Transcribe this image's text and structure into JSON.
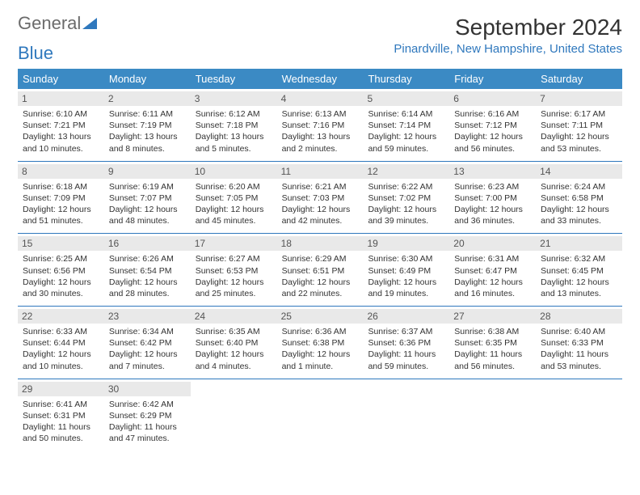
{
  "logo": {
    "text_gray": "General",
    "text_blue": "Blue"
  },
  "header": {
    "month_title": "September 2024",
    "location": "Pinardville, New Hampshire, United States"
  },
  "colors": {
    "header_bg": "#3b8ac4",
    "rule": "#2f78bd",
    "daynum_bg": "#e9e9e9",
    "text": "#333333"
  },
  "day_names": [
    "Sunday",
    "Monday",
    "Tuesday",
    "Wednesday",
    "Thursday",
    "Friday",
    "Saturday"
  ],
  "weeks": [
    [
      {
        "n": "1",
        "sunrise": "Sunrise: 6:10 AM",
        "sunset": "Sunset: 7:21 PM",
        "day1": "Daylight: 13 hours",
        "day2": "and 10 minutes."
      },
      {
        "n": "2",
        "sunrise": "Sunrise: 6:11 AM",
        "sunset": "Sunset: 7:19 PM",
        "day1": "Daylight: 13 hours",
        "day2": "and 8 minutes."
      },
      {
        "n": "3",
        "sunrise": "Sunrise: 6:12 AM",
        "sunset": "Sunset: 7:18 PM",
        "day1": "Daylight: 13 hours",
        "day2": "and 5 minutes."
      },
      {
        "n": "4",
        "sunrise": "Sunrise: 6:13 AM",
        "sunset": "Sunset: 7:16 PM",
        "day1": "Daylight: 13 hours",
        "day2": "and 2 minutes."
      },
      {
        "n": "5",
        "sunrise": "Sunrise: 6:14 AM",
        "sunset": "Sunset: 7:14 PM",
        "day1": "Daylight: 12 hours",
        "day2": "and 59 minutes."
      },
      {
        "n": "6",
        "sunrise": "Sunrise: 6:16 AM",
        "sunset": "Sunset: 7:12 PM",
        "day1": "Daylight: 12 hours",
        "day2": "and 56 minutes."
      },
      {
        "n": "7",
        "sunrise": "Sunrise: 6:17 AM",
        "sunset": "Sunset: 7:11 PM",
        "day1": "Daylight: 12 hours",
        "day2": "and 53 minutes."
      }
    ],
    [
      {
        "n": "8",
        "sunrise": "Sunrise: 6:18 AM",
        "sunset": "Sunset: 7:09 PM",
        "day1": "Daylight: 12 hours",
        "day2": "and 51 minutes."
      },
      {
        "n": "9",
        "sunrise": "Sunrise: 6:19 AM",
        "sunset": "Sunset: 7:07 PM",
        "day1": "Daylight: 12 hours",
        "day2": "and 48 minutes."
      },
      {
        "n": "10",
        "sunrise": "Sunrise: 6:20 AM",
        "sunset": "Sunset: 7:05 PM",
        "day1": "Daylight: 12 hours",
        "day2": "and 45 minutes."
      },
      {
        "n": "11",
        "sunrise": "Sunrise: 6:21 AM",
        "sunset": "Sunset: 7:03 PM",
        "day1": "Daylight: 12 hours",
        "day2": "and 42 minutes."
      },
      {
        "n": "12",
        "sunrise": "Sunrise: 6:22 AM",
        "sunset": "Sunset: 7:02 PM",
        "day1": "Daylight: 12 hours",
        "day2": "and 39 minutes."
      },
      {
        "n": "13",
        "sunrise": "Sunrise: 6:23 AM",
        "sunset": "Sunset: 7:00 PM",
        "day1": "Daylight: 12 hours",
        "day2": "and 36 minutes."
      },
      {
        "n": "14",
        "sunrise": "Sunrise: 6:24 AM",
        "sunset": "Sunset: 6:58 PM",
        "day1": "Daylight: 12 hours",
        "day2": "and 33 minutes."
      }
    ],
    [
      {
        "n": "15",
        "sunrise": "Sunrise: 6:25 AM",
        "sunset": "Sunset: 6:56 PM",
        "day1": "Daylight: 12 hours",
        "day2": "and 30 minutes."
      },
      {
        "n": "16",
        "sunrise": "Sunrise: 6:26 AM",
        "sunset": "Sunset: 6:54 PM",
        "day1": "Daylight: 12 hours",
        "day2": "and 28 minutes."
      },
      {
        "n": "17",
        "sunrise": "Sunrise: 6:27 AM",
        "sunset": "Sunset: 6:53 PM",
        "day1": "Daylight: 12 hours",
        "day2": "and 25 minutes."
      },
      {
        "n": "18",
        "sunrise": "Sunrise: 6:29 AM",
        "sunset": "Sunset: 6:51 PM",
        "day1": "Daylight: 12 hours",
        "day2": "and 22 minutes."
      },
      {
        "n": "19",
        "sunrise": "Sunrise: 6:30 AM",
        "sunset": "Sunset: 6:49 PM",
        "day1": "Daylight: 12 hours",
        "day2": "and 19 minutes."
      },
      {
        "n": "20",
        "sunrise": "Sunrise: 6:31 AM",
        "sunset": "Sunset: 6:47 PM",
        "day1": "Daylight: 12 hours",
        "day2": "and 16 minutes."
      },
      {
        "n": "21",
        "sunrise": "Sunrise: 6:32 AM",
        "sunset": "Sunset: 6:45 PM",
        "day1": "Daylight: 12 hours",
        "day2": "and 13 minutes."
      }
    ],
    [
      {
        "n": "22",
        "sunrise": "Sunrise: 6:33 AM",
        "sunset": "Sunset: 6:44 PM",
        "day1": "Daylight: 12 hours",
        "day2": "and 10 minutes."
      },
      {
        "n": "23",
        "sunrise": "Sunrise: 6:34 AM",
        "sunset": "Sunset: 6:42 PM",
        "day1": "Daylight: 12 hours",
        "day2": "and 7 minutes."
      },
      {
        "n": "24",
        "sunrise": "Sunrise: 6:35 AM",
        "sunset": "Sunset: 6:40 PM",
        "day1": "Daylight: 12 hours",
        "day2": "and 4 minutes."
      },
      {
        "n": "25",
        "sunrise": "Sunrise: 6:36 AM",
        "sunset": "Sunset: 6:38 PM",
        "day1": "Daylight: 12 hours",
        "day2": "and 1 minute."
      },
      {
        "n": "26",
        "sunrise": "Sunrise: 6:37 AM",
        "sunset": "Sunset: 6:36 PM",
        "day1": "Daylight: 11 hours",
        "day2": "and 59 minutes."
      },
      {
        "n": "27",
        "sunrise": "Sunrise: 6:38 AM",
        "sunset": "Sunset: 6:35 PM",
        "day1": "Daylight: 11 hours",
        "day2": "and 56 minutes."
      },
      {
        "n": "28",
        "sunrise": "Sunrise: 6:40 AM",
        "sunset": "Sunset: 6:33 PM",
        "day1": "Daylight: 11 hours",
        "day2": "and 53 minutes."
      }
    ],
    [
      {
        "n": "29",
        "sunrise": "Sunrise: 6:41 AM",
        "sunset": "Sunset: 6:31 PM",
        "day1": "Daylight: 11 hours",
        "day2": "and 50 minutes."
      },
      {
        "n": "30",
        "sunrise": "Sunrise: 6:42 AM",
        "sunset": "Sunset: 6:29 PM",
        "day1": "Daylight: 11 hours",
        "day2": "and 47 minutes."
      },
      null,
      null,
      null,
      null,
      null
    ]
  ]
}
